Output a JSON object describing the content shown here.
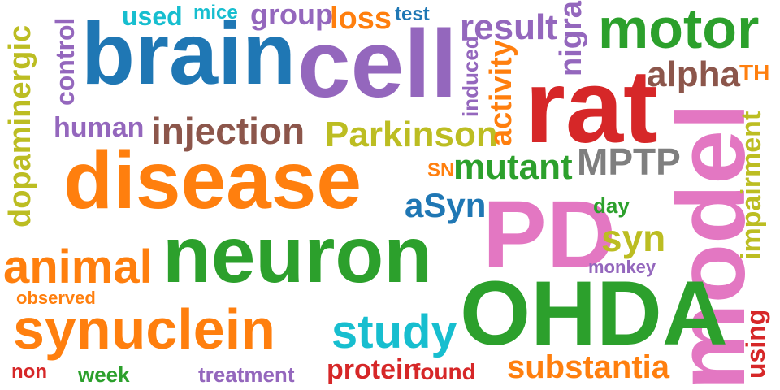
{
  "palette": {
    "blue": "#1f77b4",
    "orange": "#ff7f0e",
    "green": "#2ca02c",
    "red": "#d62728",
    "purple": "#9467bd",
    "brown": "#8c564b",
    "pink": "#e377c2",
    "gray": "#7f7f7f",
    "olive": "#bcbd22",
    "cyan": "#17becf"
  },
  "words": [
    "brain",
    "cell",
    "rat",
    "motor",
    "disease",
    "neuron",
    "PD",
    "model",
    "OHDA",
    "synuclein",
    "animal",
    "study",
    "dopaminergic",
    "control",
    "used",
    "mice",
    "group",
    "loss",
    "test",
    "result",
    "nigra",
    "alpha",
    "TH",
    "human",
    "injection",
    "Parkinson",
    "induced",
    "activity",
    "impairment",
    "MPTP",
    "SN",
    "mutant",
    "aSyn",
    "day",
    "syn",
    "monkey",
    "observed",
    "substantia",
    "using",
    "non",
    "week",
    "treatment",
    "protein",
    "found"
  ]
}
